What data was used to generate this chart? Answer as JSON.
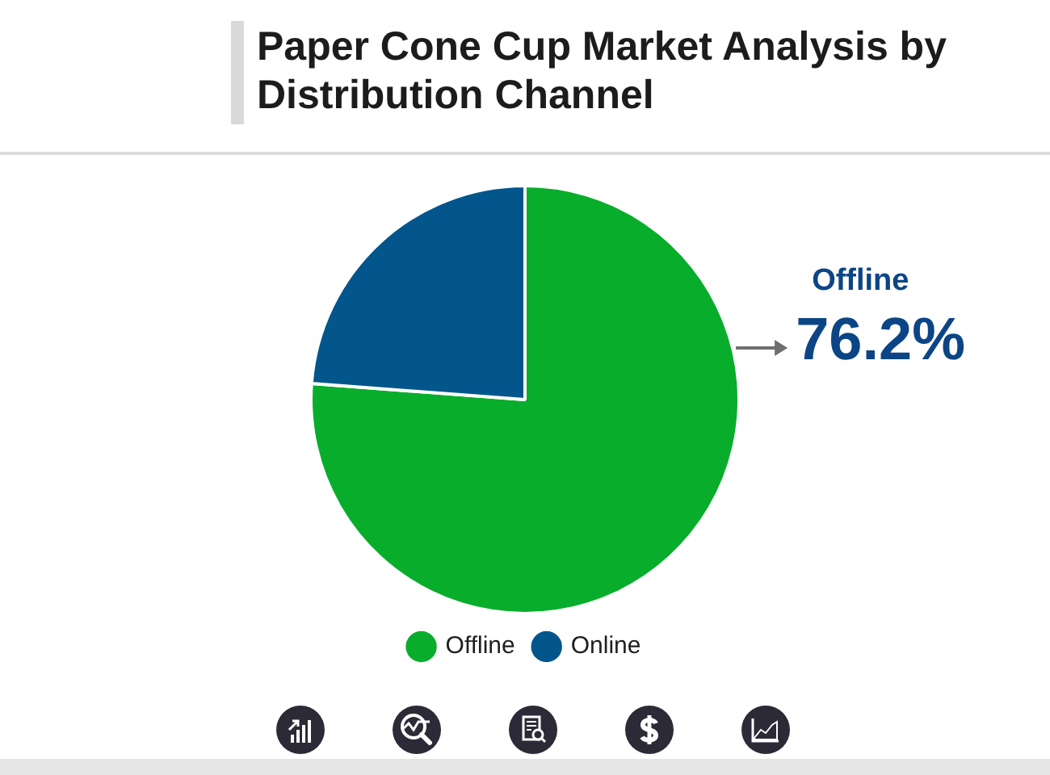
{
  "chart_data": {
    "type": "pie",
    "title": "Paper Cone Cup Market Analysis by Distribution Channel",
    "categories": [
      "Offline",
      "Online"
    ],
    "values": [
      76.2,
      23.8
    ],
    "colors": [
      "#09ad2c",
      "#03568c"
    ],
    "value_labels": [
      "76.2%",
      null
    ],
    "legend": "bottom"
  }
}
